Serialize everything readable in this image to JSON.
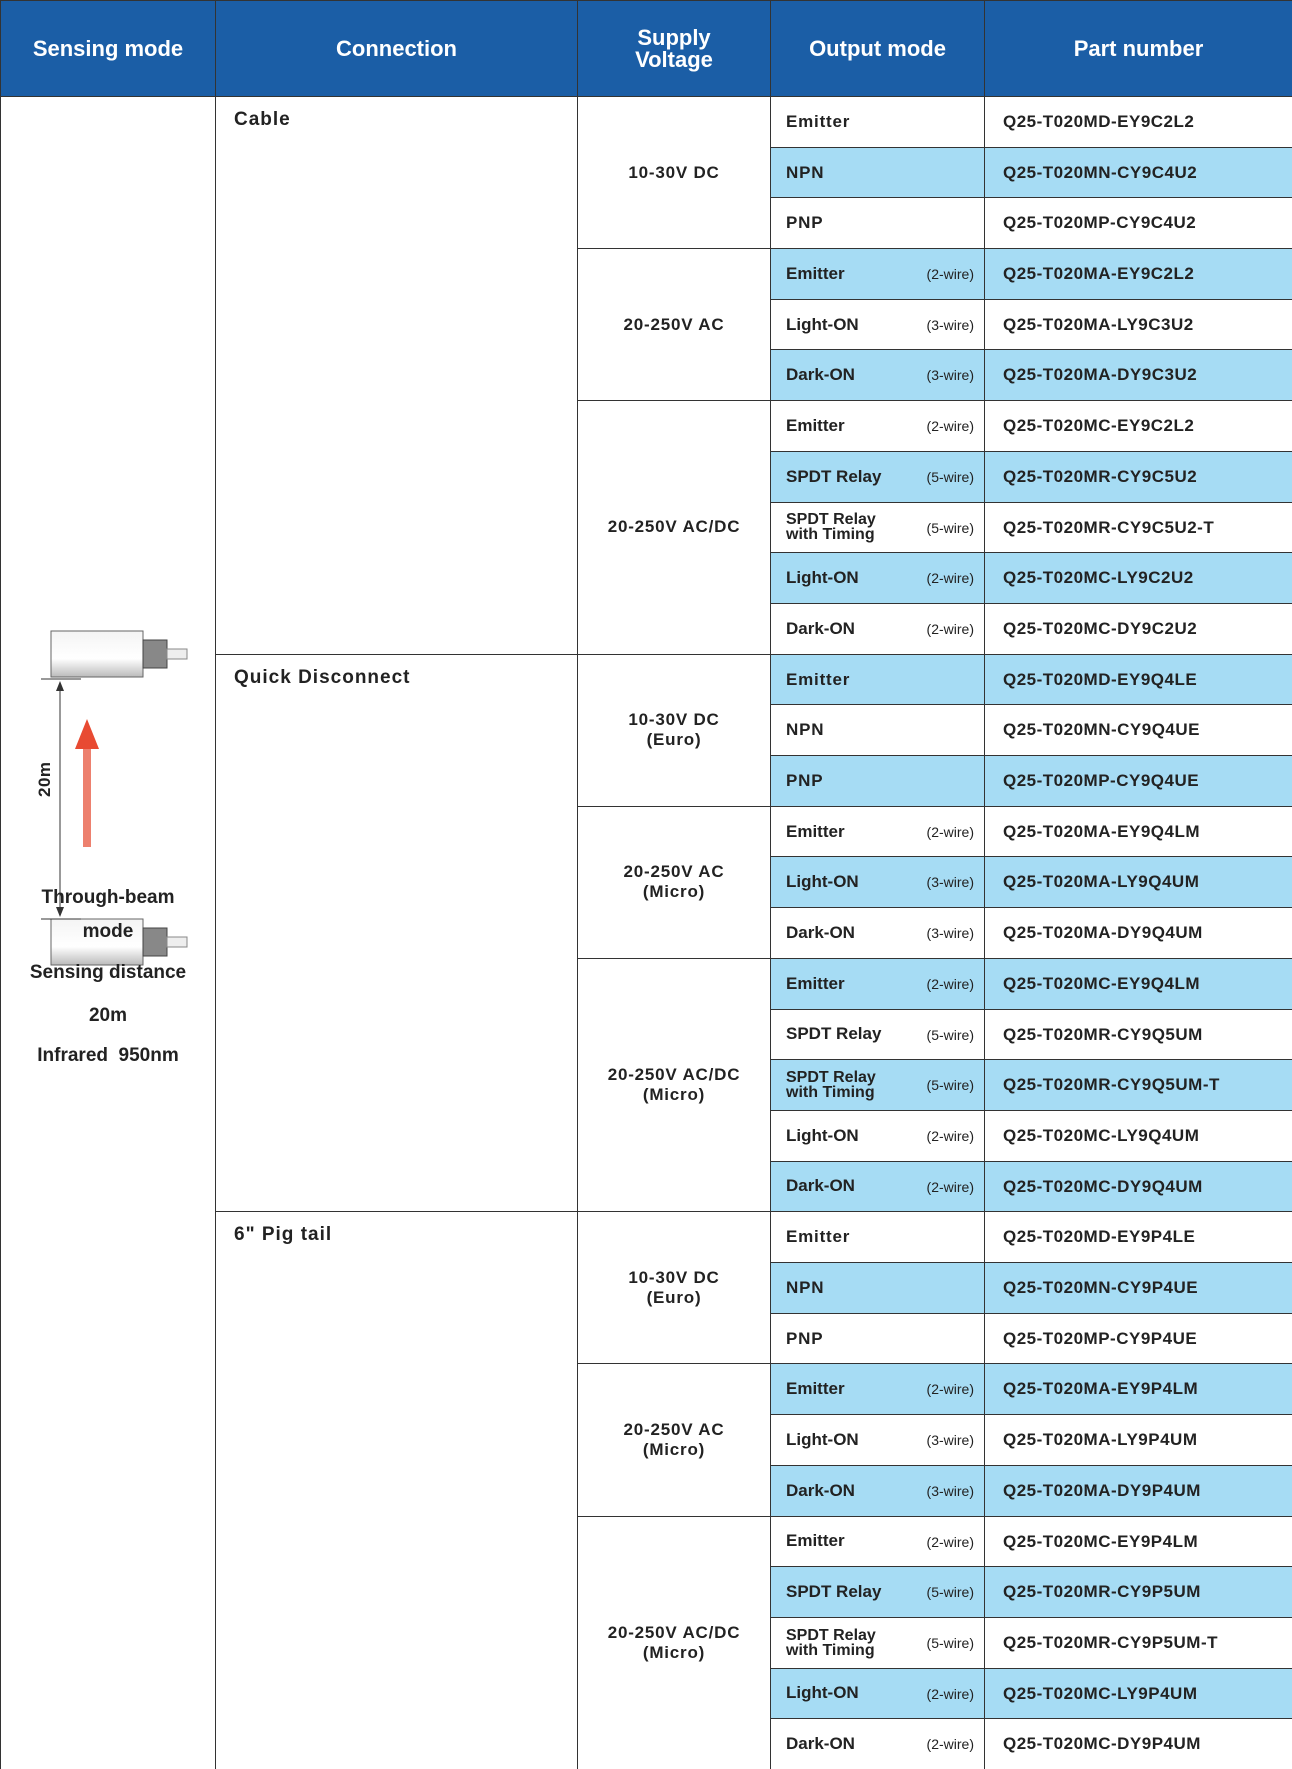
{
  "header": [
    "Sensing mode",
    "Connection",
    [
      "Supply",
      "Voltage"
    ],
    "Output mode",
    "Part number"
  ],
  "sensing_mode": {
    "diagram_label": "20m",
    "lines": [
      "Through-beam",
      "mode",
      "Sensing distance",
      "20m",
      "Infrared  950nm"
    ]
  },
  "groups": [
    {
      "connection": "Cable",
      "voltages": [
        {
          "label": [
            "10-30V DC"
          ],
          "rows": [
            {
              "output": [
                "Emitter"
              ],
              "part": "Q25-T020MD-EY9C2L2"
            },
            {
              "output": [
                "NPN"
              ],
              "part": "Q25-T020MN-CY9C4U2"
            },
            {
              "output": [
                "PNP"
              ],
              "part": "Q25-T020MP-CY9C4U2"
            }
          ]
        },
        {
          "label": [
            "20-250V AC"
          ],
          "rows": [
            {
              "output": [
                "Emitter"
              ],
              "wire": "(2-wire)",
              "part": "Q25-T020MA-EY9C2L2"
            },
            {
              "output": [
                "Light-ON"
              ],
              "wire": "(3-wire)",
              "part": "Q25-T020MA-LY9C3U2"
            },
            {
              "output": [
                "Dark-ON"
              ],
              "wire": "(3-wire)",
              "part": "Q25-T020MA-DY9C3U2"
            }
          ]
        },
        {
          "label": [
            "20-250V AC/DC"
          ],
          "rows": [
            {
              "output": [
                "Emitter"
              ],
              "wire": "(2-wire)",
              "part": "Q25-T020MC-EY9C2L2"
            },
            {
              "output": [
                "SPDT Relay"
              ],
              "wire": "(5-wire)",
              "part": "Q25-T020MR-CY9C5U2"
            },
            {
              "output": [
                "SPDT Relay",
                "with Timing"
              ],
              "wire": "(5-wire)",
              "part": "Q25-T020MR-CY9C5U2-T"
            },
            {
              "output": [
                "Light-ON"
              ],
              "wire": "(2-wire)",
              "part": "Q25-T020MC-LY9C2U2"
            },
            {
              "output": [
                "Dark-ON"
              ],
              "wire": "(2-wire)",
              "part": "Q25-T020MC-DY9C2U2"
            }
          ]
        }
      ]
    },
    {
      "connection": "Quick Disconnect",
      "voltages": [
        {
          "label": [
            "10-30V DC",
            "(Euro)"
          ],
          "rows": [
            {
              "output": [
                "Emitter"
              ],
              "part": "Q25-T020MD-EY9Q4LE"
            },
            {
              "output": [
                "NPN"
              ],
              "part": "Q25-T020MN-CY9Q4UE"
            },
            {
              "output": [
                "PNP"
              ],
              "part": "Q25-T020MP-CY9Q4UE"
            }
          ]
        },
        {
          "label": [
            "20-250V AC",
            "(Micro)"
          ],
          "rows": [
            {
              "output": [
                "Emitter"
              ],
              "wire": "(2-wire)",
              "part": "Q25-T020MA-EY9Q4LM"
            },
            {
              "output": [
                "Light-ON"
              ],
              "wire": "(3-wire)",
              "part": "Q25-T020MA-LY9Q4UM"
            },
            {
              "output": [
                "Dark-ON"
              ],
              "wire": "(3-wire)",
              "part": "Q25-T020MA-DY9Q4UM"
            }
          ]
        },
        {
          "label": [
            "20-250V AC/DC",
            "(Micro)"
          ],
          "rows": [
            {
              "output": [
                "Emitter"
              ],
              "wire": "(2-wire)",
              "part": "Q25-T020MC-EY9Q4LM"
            },
            {
              "output": [
                "SPDT Relay"
              ],
              "wire": "(5-wire)",
              "part": "Q25-T020MR-CY9Q5UM"
            },
            {
              "output": [
                "SPDT Relay",
                "with Timing"
              ],
              "wire": "(5-wire)",
              "part": "Q25-T020MR-CY9Q5UM-T"
            },
            {
              "output": [
                "Light-ON"
              ],
              "wire": "(2-wire)",
              "part": "Q25-T020MC-LY9Q4UM"
            },
            {
              "output": [
                "Dark-ON"
              ],
              "wire": "(2-wire)",
              "part": "Q25-T020MC-DY9Q4UM"
            }
          ]
        }
      ]
    },
    {
      "connection": "6\" Pig tail",
      "voltages": [
        {
          "label": [
            "10-30V DC",
            "(Euro)"
          ],
          "rows": [
            {
              "output": [
                "Emitter"
              ],
              "part": "Q25-T020MD-EY9P4LE"
            },
            {
              "output": [
                "NPN"
              ],
              "part": "Q25-T020MN-CY9P4UE"
            },
            {
              "output": [
                "PNP"
              ],
              "part": "Q25-T020MP-CY9P4UE"
            }
          ]
        },
        {
          "label": [
            "20-250V AC",
            "(Micro)"
          ],
          "rows": [
            {
              "output": [
                "Emitter"
              ],
              "wire": "(2-wire)",
              "part": "Q25-T020MA-EY9P4LM"
            },
            {
              "output": [
                "Light-ON"
              ],
              "wire": "(3-wire)",
              "part": "Q25-T020MA-LY9P4UM"
            },
            {
              "output": [
                "Dark-ON"
              ],
              "wire": "(3-wire)",
              "part": "Q25-T020MA-DY9P4UM"
            }
          ]
        },
        {
          "label": [
            "20-250V AC/DC",
            "(Micro)"
          ],
          "rows": [
            {
              "output": [
                "Emitter"
              ],
              "wire": "(2-wire)",
              "part": "Q25-T020MC-EY9P4LM"
            },
            {
              "output": [
                "SPDT Relay"
              ],
              "wire": "(5-wire)",
              "part": "Q25-T020MR-CY9P5UM"
            },
            {
              "output": [
                "SPDT Relay",
                "with Timing"
              ],
              "wire": "(5-wire)",
              "part": "Q25-T020MR-CY9P5UM-T"
            },
            {
              "output": [
                "Light-ON"
              ],
              "wire": "(2-wire)",
              "part": "Q25-T020MC-LY9P4UM"
            },
            {
              "output": [
                "Dark-ON"
              ],
              "wire": "(2-wire)",
              "part": "Q25-T020MC-DY9P4UM"
            }
          ]
        }
      ]
    }
  ]
}
